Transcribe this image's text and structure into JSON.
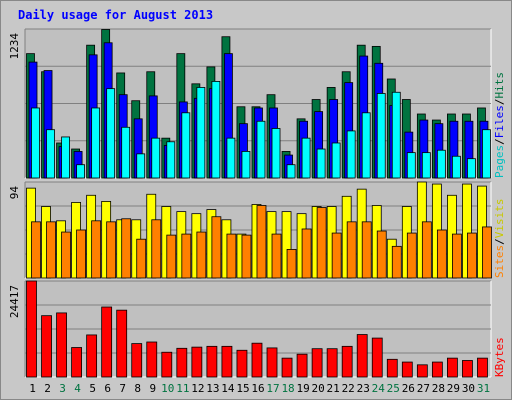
{
  "chart_data": {
    "type": "bar",
    "title": "Daily usage for August 2013",
    "days": [
      "1",
      "2",
      "3",
      "4",
      "5",
      "6",
      "7",
      "8",
      "9",
      "10",
      "11",
      "12",
      "13",
      "14",
      "15",
      "16",
      "17",
      "18",
      "19",
      "20",
      "21",
      "22",
      "23",
      "24",
      "25",
      "26",
      "27",
      "28",
      "29",
      "30",
      "31"
    ],
    "weekend_days": [
      "3",
      "4",
      "10",
      "11",
      "17",
      "18",
      "24",
      "25",
      "31"
    ],
    "panels": [
      {
        "id": "top",
        "max_label": "1234",
        "ymax": 1234,
        "right_labels": [
          "Pages",
          "Files",
          "Hits"
        ],
        "series": [
          {
            "name": "Hits",
            "color": "#007340",
            "values": [
              1030,
              880,
              290,
              240,
              1100,
              1230,
              870,
              640,
              880,
              330,
              1030,
              780,
              920,
              1170,
              590,
              590,
              690,
              220,
              490,
              650,
              750,
              880,
              1100,
              1090,
              820,
              650,
              530,
              480,
              530,
              530,
              580
            ]
          },
          {
            "name": "Files",
            "color": "#0000ff",
            "values": [
              960,
              890,
              260,
              220,
              1020,
              1120,
              690,
              490,
              680,
              270,
              630,
              660,
              740,
              1030,
              450,
              580,
              580,
              190,
              470,
              550,
              650,
              790,
              1010,
              950,
              600,
              380,
              480,
              450,
              470,
              470,
              470
            ]
          },
          {
            "name": "Pages",
            "color": "#00ffff",
            "values": [
              580,
              400,
              340,
              110,
              580,
              740,
              420,
              200,
              330,
              300,
              540,
              750,
              800,
              330,
              220,
              470,
              410,
              110,
              330,
              240,
              290,
              390,
              540,
              700,
              710,
              210,
              210,
              230,
              180,
              160,
              400
            ]
          }
        ]
      },
      {
        "id": "middle",
        "max_label": "94",
        "ymax": 94,
        "right_labels": [
          "Sites",
          "Visits"
        ],
        "series": [
          {
            "name": "Visits",
            "color": "#ffff00",
            "values": [
              88,
              70,
              56,
              74,
              81,
              75,
              57,
              57,
              82,
              70,
              65,
              63,
              67,
              57,
              43,
              72,
              65,
              65,
              63,
              70,
              70,
              80,
              87,
              71,
              38,
              70,
              94,
              92,
              81,
              92,
              90
            ]
          },
          {
            "name": "Sites",
            "color": "#ff8000",
            "values": [
              55,
              55,
              45,
              47,
              56,
              55,
              58,
              38,
              57,
              42,
              43,
              45,
              60,
              43,
              42,
              71,
              43,
              28,
              48,
              69,
              44,
              55,
              55,
              46,
              31,
              44,
              55,
              47,
              43,
              44,
              50
            ]
          }
        ]
      },
      {
        "id": "bottom",
        "max_label": "24417",
        "ymax": 24417,
        "right_labels": [
          "KBytes"
        ],
        "series": [
          {
            "name": "KBytes",
            "color": "#ff0000",
            "values": [
              24417,
              15600,
              16300,
              7500,
              10700,
              17800,
              17000,
              8500,
              8900,
              6300,
              7300,
              7600,
              7800,
              7800,
              6800,
              8600,
              7400,
              4800,
              5800,
              7200,
              7200,
              7800,
              10800,
              9900,
              4500,
              3800,
              3100,
              3800,
              4800,
              4200,
              4800
            ]
          }
        ]
      }
    ],
    "colors": {
      "background": "#c8c8c8",
      "plot_background": "#c0c0c0",
      "title": "#0000ff",
      "weekday_label": "#000000",
      "weekend_label": "#007340",
      "pages_label": "#00c0c0",
      "files_label": "#0000ff",
      "hits_label": "#007340",
      "sites_label": "#ff8000",
      "visits_label": "#c8c800",
      "kbytes_label": "#ff0000"
    }
  }
}
